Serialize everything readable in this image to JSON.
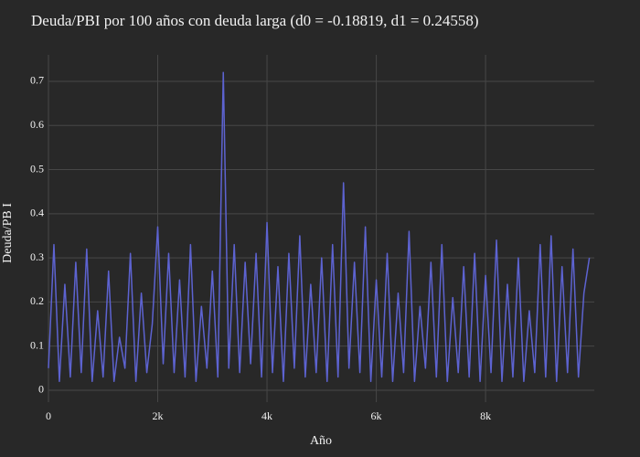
{
  "chart_data": {
    "type": "line",
    "title": "Deuda/PBI por 100 años con deuda larga (d0 = -0.18819, d1 = 0.24558)",
    "x_label": "Año",
    "y_label": "Deuda/PB I",
    "x": [
      0,
      100,
      200,
      300,
      400,
      500,
      600,
      700,
      800,
      900,
      1000,
      1100,
      1200,
      1300,
      1400,
      1500,
      1600,
      1700,
      1800,
      1900,
      2000,
      2100,
      2200,
      2300,
      2400,
      2500,
      2600,
      2700,
      2800,
      2900,
      3000,
      3100,
      3200,
      3300,
      3400,
      3500,
      3600,
      3700,
      3800,
      3900,
      4000,
      4100,
      4200,
      4300,
      4400,
      4500,
      4600,
      4700,
      4800,
      4900,
      5000,
      5100,
      5200,
      5300,
      5400,
      5500,
      5600,
      5700,
      5800,
      5900,
      6000,
      6100,
      6200,
      6300,
      6400,
      6500,
      6600,
      6700,
      6800,
      6900,
      7000,
      7100,
      7200,
      7300,
      7400,
      7500,
      7600,
      7700,
      7800,
      7900,
      8000,
      8100,
      8200,
      8300,
      8400,
      8500,
      8600,
      8700,
      8800,
      8900,
      9000,
      9100,
      9200,
      9300,
      9400,
      9500,
      9600,
      9700,
      9800,
      9900
    ],
    "series": [
      {
        "name": "Deuda/PBI",
        "color": "#5d63d1",
        "values": [
          0.05,
          0.33,
          0.02,
          0.24,
          0.03,
          0.29,
          0.04,
          0.32,
          0.02,
          0.18,
          0.03,
          0.27,
          0.02,
          0.12,
          0.05,
          0.31,
          0.02,
          0.22,
          0.04,
          0.15,
          0.37,
          0.06,
          0.31,
          0.04,
          0.25,
          0.03,
          0.33,
          0.02,
          0.19,
          0.05,
          0.27,
          0.03,
          0.72,
          0.05,
          0.33,
          0.04,
          0.29,
          0.06,
          0.31,
          0.03,
          0.38,
          0.04,
          0.28,
          0.02,
          0.31,
          0.05,
          0.35,
          0.03,
          0.24,
          0.04,
          0.3,
          0.02,
          0.33,
          0.03,
          0.47,
          0.05,
          0.29,
          0.04,
          0.37,
          0.02,
          0.25,
          0.03,
          0.31,
          0.02,
          0.22,
          0.04,
          0.36,
          0.02,
          0.19,
          0.05,
          0.29,
          0.03,
          0.33,
          0.02,
          0.21,
          0.04,
          0.28,
          0.03,
          0.31,
          0.02,
          0.26,
          0.04,
          0.34,
          0.02,
          0.24,
          0.03,
          0.3,
          0.02,
          0.18,
          0.04,
          0.33,
          0.03,
          0.35,
          0.02,
          0.28,
          0.04,
          0.32,
          0.03,
          0.22,
          0.3
        ]
      }
    ],
    "xlim": [
      0,
      9990
    ],
    "ylim": [
      -0.027,
      0.76
    ],
    "xticks": [
      0,
      {
        "value": 2000,
        "label": "2k"
      },
      {
        "value": 4000,
        "label": "4k"
      },
      {
        "value": 6000,
        "label": "6k"
      },
      {
        "value": 8000,
        "label": "8k"
      }
    ],
    "yticks": [
      0,
      0.1,
      0.2,
      0.3,
      0.4,
      0.5,
      0.6,
      0.7
    ],
    "grid": true
  }
}
